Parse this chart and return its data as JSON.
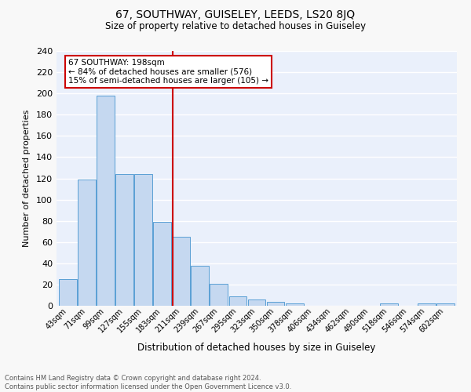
{
  "title": "67, SOUTHWAY, GUISELEY, LEEDS, LS20 8JQ",
  "subtitle": "Size of property relative to detached houses in Guiseley",
  "xlabel": "Distribution of detached houses by size in Guiseley",
  "ylabel": "Number of detached properties",
  "footer_line1": "Contains HM Land Registry data © Crown copyright and database right 2024.",
  "footer_line2": "Contains public sector information licensed under the Open Government Licence v3.0.",
  "bar_labels": [
    "43sqm",
    "71sqm",
    "99sqm",
    "127sqm",
    "155sqm",
    "183sqm",
    "211sqm",
    "239sqm",
    "267sqm",
    "295sqm",
    "323sqm",
    "350sqm",
    "378sqm",
    "406sqm",
    "434sqm",
    "462sqm",
    "490sqm",
    "518sqm",
    "546sqm",
    "574sqm",
    "602sqm"
  ],
  "bar_values": [
    25,
    119,
    198,
    124,
    124,
    79,
    65,
    38,
    21,
    9,
    6,
    4,
    2,
    0,
    0,
    0,
    0,
    2,
    0,
    2,
    2
  ],
  "bar_color": "#c5d8f0",
  "bar_edge_color": "#5a9fd4",
  "background_color": "#eaf0fb",
  "grid_color": "#ffffff",
  "property_line_color": "#cc0000",
  "annotation_text": "67 SOUTHWAY: 198sqm\n← 84% of detached houses are smaller (576)\n15% of semi-detached houses are larger (105) →",
  "annotation_box_color": "#ffffff",
  "annotation_box_edge": "#cc0000",
  "ylim": [
    0,
    240
  ],
  "yticks": [
    0,
    20,
    40,
    60,
    80,
    100,
    120,
    140,
    160,
    180,
    200,
    220,
    240
  ],
  "fig_width": 6.0,
  "fig_height": 5.0,
  "dpi": 100
}
